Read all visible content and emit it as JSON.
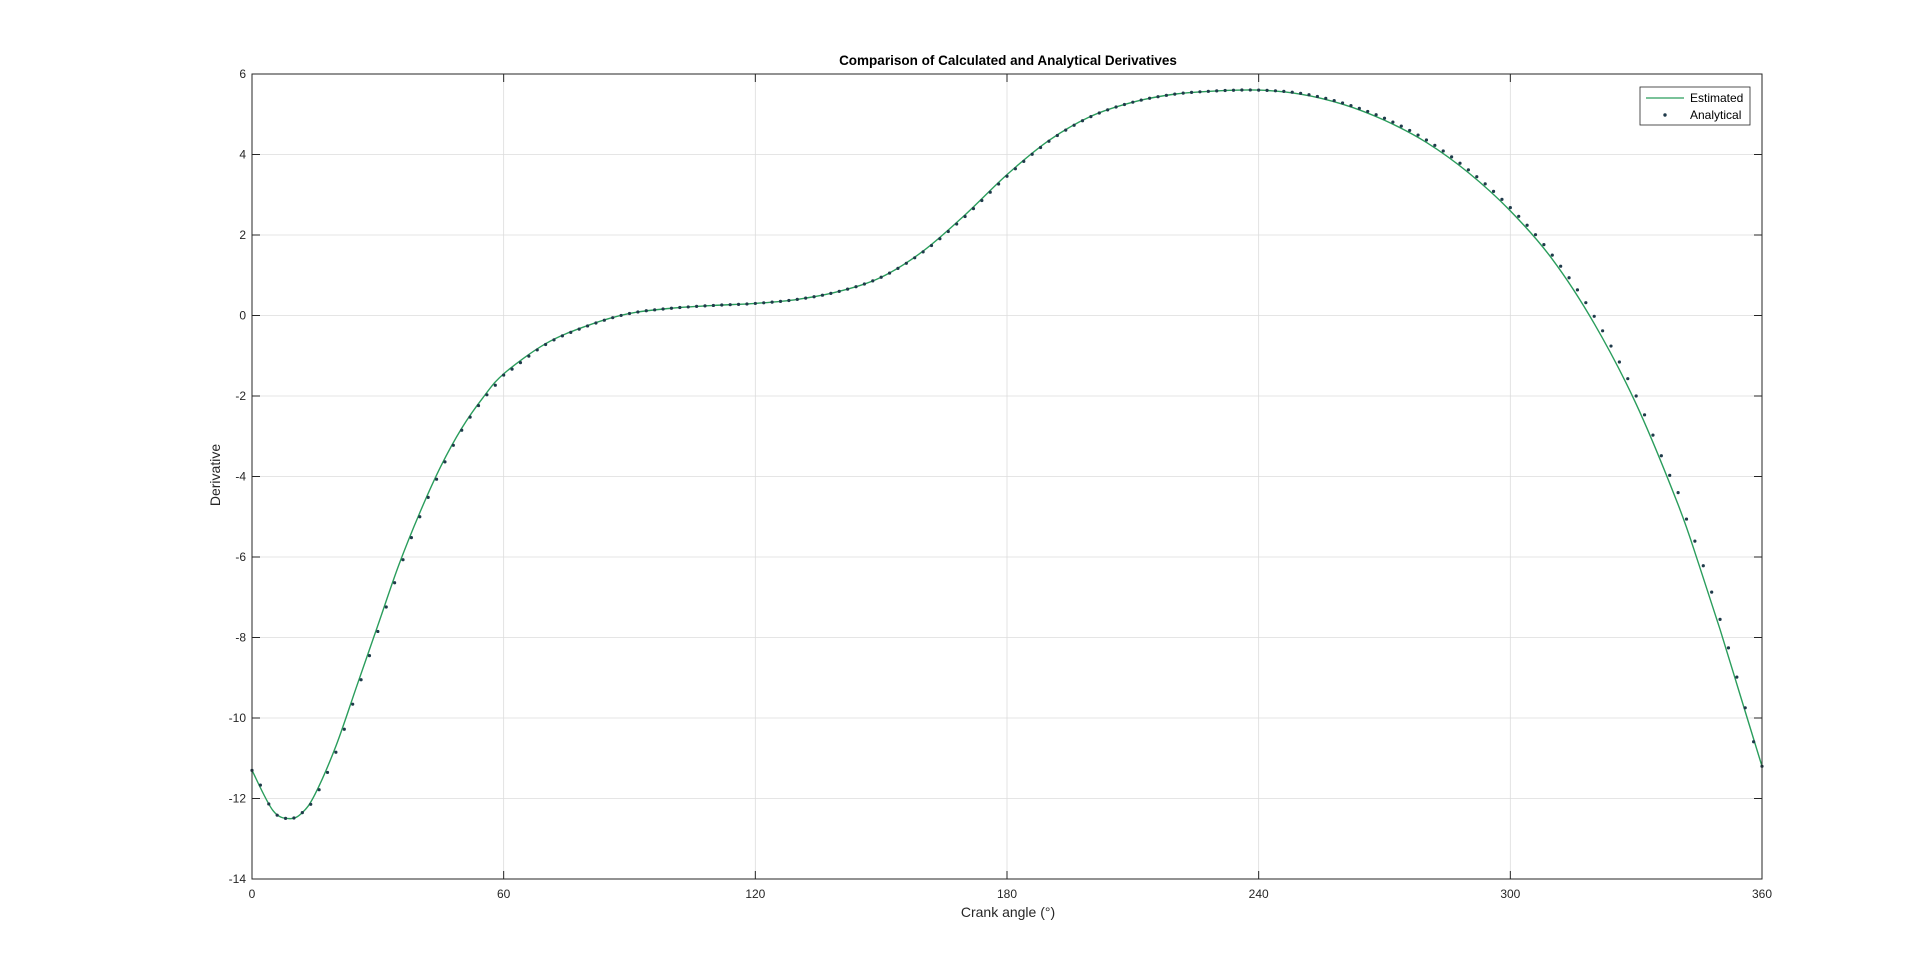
{
  "chart_data": {
    "type": "line",
    "title": "Comparison of Calculated and Analytical Derivatives",
    "xlabel": "Crank angle (°)",
    "ylabel": "Derivative",
    "xlim": [
      0,
      360
    ],
    "ylim": [
      -14,
      6
    ],
    "xticks": [
      0,
      60,
      120,
      180,
      240,
      300,
      360
    ],
    "yticks": [
      -14,
      -12,
      -10,
      -8,
      -6,
      -4,
      -2,
      0,
      2,
      4,
      6
    ],
    "grid": true,
    "legend_position": "top-right",
    "colors": {
      "estimated": "#2a9d5c",
      "analytical": "#1f3a4a",
      "axes": "#262626",
      "grid": "#dcdcdc"
    },
    "series": [
      {
        "name": "Estimated",
        "style": "line",
        "x": [
          0,
          5,
          9,
          12,
          15,
          20,
          25,
          30,
          35,
          40,
          45,
          50,
          55,
          60,
          70,
          80,
          90,
          100,
          110,
          120,
          130,
          140,
          150,
          160,
          170,
          180,
          190,
          200,
          210,
          220,
          230,
          240,
          250,
          260,
          270,
          280,
          290,
          300,
          310,
          320,
          330,
          340,
          345,
          350,
          355,
          360
        ],
        "y": [
          -11.3,
          -12.3,
          -12.5,
          -12.35,
          -11.9,
          -10.7,
          -9.2,
          -7.7,
          -6.2,
          -4.9,
          -3.75,
          -2.8,
          -2.05,
          -1.45,
          -0.7,
          -0.25,
          0.05,
          0.18,
          0.25,
          0.3,
          0.4,
          0.6,
          0.95,
          1.6,
          2.5,
          3.5,
          4.35,
          4.95,
          5.3,
          5.5,
          5.58,
          5.6,
          5.5,
          5.25,
          4.85,
          4.3,
          3.55,
          2.6,
          1.4,
          -0.2,
          -2.2,
          -4.7,
          -6.2,
          -7.8,
          -9.5,
          -11.2
        ]
      },
      {
        "name": "Analytical",
        "style": "markers",
        "x": [
          0,
          5,
          9,
          12,
          15,
          20,
          25,
          30,
          35,
          40,
          45,
          50,
          55,
          60,
          70,
          80,
          90,
          100,
          110,
          120,
          130,
          140,
          150,
          160,
          170,
          180,
          190,
          200,
          210,
          220,
          230,
          240,
          250,
          260,
          270,
          280,
          290,
          300,
          310,
          320,
          330,
          340,
          345,
          350,
          355,
          360
        ],
        "y": [
          -11.3,
          -12.3,
          -12.5,
          -12.35,
          -11.95,
          -10.85,
          -9.35,
          -7.85,
          -6.35,
          -5.0,
          -3.85,
          -2.85,
          -2.1,
          -1.48,
          -0.72,
          -0.26,
          0.05,
          0.18,
          0.25,
          0.3,
          0.4,
          0.6,
          0.95,
          1.58,
          2.46,
          3.46,
          4.33,
          4.94,
          5.3,
          5.5,
          5.58,
          5.6,
          5.52,
          5.28,
          4.9,
          4.36,
          3.62,
          2.68,
          1.5,
          -0.02,
          -2.0,
          -4.4,
          -5.9,
          -7.55,
          -9.35,
          -11.2
        ]
      }
    ]
  }
}
